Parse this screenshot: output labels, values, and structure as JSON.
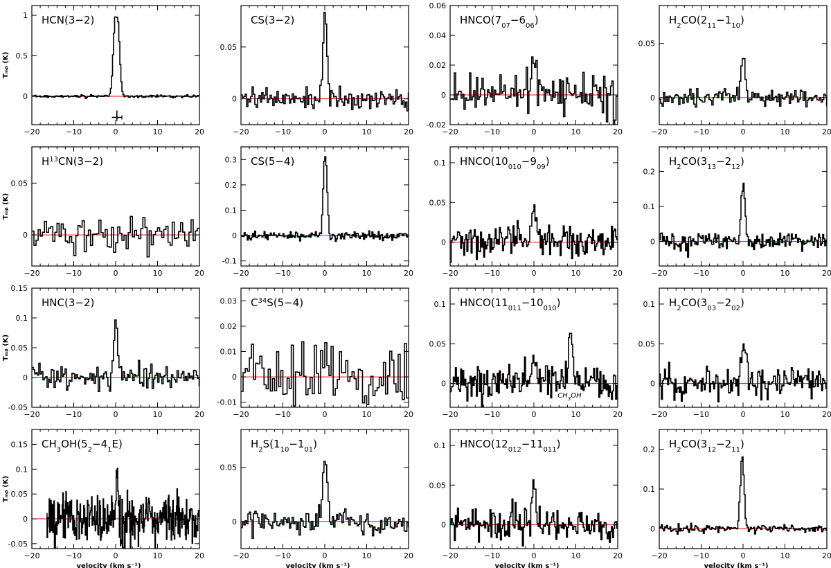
{
  "chart_data": {
    "type": "line",
    "layout": "4x4 grid of spectra",
    "grid": false,
    "xlabel": "velocity (km s⁻¹)",
    "ylabel": "Tₘᵦ (K)",
    "baseline_color": "#ff0000",
    "line_color": "#000000",
    "xlim": [
      -20,
      20
    ],
    "xticks": [
      -20,
      -10,
      0,
      10,
      20
    ],
    "panels": [
      {
        "title_parts": [
          [
            "n",
            "HCN(3−2)"
          ]
        ],
        "ylim": [
          -0.35,
          1.12
        ],
        "yticks": [
          0,
          0.5,
          1
        ],
        "ytick_labels": [
          "0",
          "0.5",
          "1"
        ],
        "xstart": -20,
        "channel": 0.25,
        "noise": 0.008,
        "peaks": [
          {
            "v": 0.2,
            "amp": 0.98,
            "w": 0.5,
            "flat": 0.5
          }
        ],
        "has_error_bar": true,
        "error_bar": {
          "v": 0.3,
          "halfwidth": 1.2,
          "y": -0.26
        }
      },
      {
        "title_parts": [
          [
            "n",
            "CS(3−2)"
          ]
        ],
        "ylim": [
          -0.025,
          0.09
        ],
        "yticks": [
          0,
          0.05
        ],
        "ytick_labels": [
          "0",
          "0.05"
        ],
        "xstart": -20,
        "channel": 0.33,
        "noise": 0.005,
        "peaks": [
          {
            "v": 0.1,
            "amp": 0.085,
            "w": 0.45
          }
        ]
      },
      {
        "title_parts": [
          [
            "n",
            "HNCO(7"
          ],
          [
            "sub",
            "07"
          ],
          [
            "n",
            "−6"
          ],
          [
            "sub",
            "06"
          ],
          [
            "n",
            ")"
          ]
        ],
        "ylim": [
          -0.02,
          0.06
        ],
        "yticks": [
          -0.02,
          0,
          0.02,
          0.04,
          0.06
        ],
        "ytick_labels": [
          "-0.02",
          "0",
          "0.02",
          "0.04",
          "0.06"
        ],
        "xstart": -20,
        "channel": 0.33,
        "noise": 0.006,
        "peaks": [
          {
            "v": 0.1,
            "amp": 0.022,
            "w": 0.5
          }
        ]
      },
      {
        "title_parts": [
          [
            "n",
            "H"
          ],
          [
            "sub",
            "2"
          ],
          [
            "n",
            "CO(2"
          ],
          [
            "sub",
            "11"
          ],
          [
            "n",
            "−1"
          ],
          [
            "sub",
            "10"
          ],
          [
            "n",
            ")"
          ]
        ],
        "ylim": [
          -0.025,
          0.085
        ],
        "yticks": [
          0,
          0.05
        ],
        "ytick_labels": [
          "0",
          "0.05"
        ],
        "xstart": -20,
        "channel": 0.33,
        "noise": 0.004,
        "peaks": [
          {
            "v": 0.0,
            "amp": 0.04,
            "w": 0.45
          }
        ]
      },
      {
        "title_parts": [
          [
            "n",
            "H"
          ],
          [
            "sup",
            "13"
          ],
          [
            "n",
            "CN(3−2)"
          ]
        ],
        "ylim": [
          -0.03,
          0.085
        ],
        "yticks": [
          0,
          0.05
        ],
        "ytick_labels": [
          "0",
          "0.05"
        ],
        "xstart": -20,
        "channel": 0.5,
        "noise": 0.009,
        "peaks": []
      },
      {
        "title_parts": [
          [
            "n",
            "CS(5−4)"
          ]
        ],
        "ylim": [
          -0.12,
          0.35
        ],
        "yticks": [
          -0.1,
          0,
          0.1,
          0.2,
          0.3
        ],
        "ytick_labels": [
          "-0.1",
          "0",
          "0.1",
          "0.2",
          "0.3"
        ],
        "xstart": -20,
        "channel": 0.25,
        "noise": 0.008,
        "peaks": [
          {
            "v": 0.1,
            "amp": 0.3,
            "w": 0.35,
            "flat": 0.3
          }
        ]
      },
      {
        "title_parts": [
          [
            "n",
            "HNCO(10"
          ],
          [
            "sub",
            "010"
          ],
          [
            "n",
            "−9"
          ],
          [
            "sub",
            "09"
          ],
          [
            "n",
            ")"
          ]
        ],
        "ylim": [
          -0.03,
          0.12
        ],
        "yticks": [
          0,
          0.05,
          0.1
        ],
        "ytick_labels": [
          "0",
          "0.05",
          "0.1"
        ],
        "xstart": -20,
        "channel": 0.25,
        "noise": 0.01,
        "peaks": [
          {
            "v": 0.0,
            "amp": 0.045,
            "w": 0.5
          },
          {
            "v": 7.2,
            "amp": 0.02,
            "w": 0.4
          }
        ]
      },
      {
        "title_parts": [
          [
            "n",
            "H"
          ],
          [
            "sub",
            "2"
          ],
          [
            "n",
            "CO(3"
          ],
          [
            "sub",
            "13"
          ],
          [
            "n",
            "−2"
          ],
          [
            "sub",
            "12"
          ],
          [
            "n",
            ")"
          ]
        ],
        "ylim": [
          -0.07,
          0.27
        ],
        "yticks": [
          0,
          0.1,
          0.2
        ],
        "ytick_labels": [
          "0",
          "0.1",
          "0.2"
        ],
        "xstart": -20,
        "channel": 0.25,
        "noise": 0.012,
        "peaks": [
          {
            "v": 0.0,
            "amp": 0.17,
            "w": 0.45
          }
        ]
      },
      {
        "title_parts": [
          [
            "n",
            "HNC(3−2)"
          ]
        ],
        "ylim": [
          -0.05,
          0.15
        ],
        "yticks": [
          -0.05,
          0,
          0.05,
          0.1,
          0.15
        ],
        "ytick_labels": [
          "-0.05",
          "0",
          "0.05",
          "0.1",
          "0.15"
        ],
        "xstart": -20,
        "channel": 0.33,
        "noise": 0.01,
        "peaks": [
          {
            "v": 0.0,
            "amp": 0.09,
            "w": 0.55
          }
        ]
      },
      {
        "title_parts": [
          [
            "n",
            "C"
          ],
          [
            "sup",
            "34"
          ],
          [
            "n",
            "S(5−4)"
          ]
        ],
        "ylim": [
          -0.012,
          0.035
        ],
        "yticks": [
          -0.01,
          0,
          0.01,
          0.02,
          0.03
        ],
        "ytick_labels": [
          "-0.01",
          "0",
          "0.01",
          "0.02",
          "0.03"
        ],
        "xstart": -20,
        "channel": 0.5,
        "noise": 0.006,
        "peaks": [
          {
            "v": 0.0,
            "amp": 0.015,
            "w": 0.6
          }
        ]
      },
      {
        "title_parts": [
          [
            "n",
            "HNCO(11"
          ],
          [
            "sub",
            "011"
          ],
          [
            "n",
            "−10"
          ],
          [
            "sub",
            "010"
          ],
          [
            "n",
            ")"
          ]
        ],
        "ylim": [
          -0.03,
          0.12
        ],
        "yticks": [
          0,
          0.05,
          0.1
        ],
        "ytick_labels": [
          "0",
          "0.05",
          "0.1"
        ],
        "xstart": -20,
        "channel": 0.25,
        "noise": 0.01,
        "peaks": [
          {
            "v": 0.0,
            "amp": 0.04,
            "w": 0.45
          },
          {
            "v": 8.7,
            "amp": 0.075,
            "w": 0.45
          }
        ],
        "annotation": {
          "text_parts": [
            [
              "n",
              "CH"
            ],
            [
              "sub",
              "3"
            ],
            [
              "n",
              "OH"
            ]
          ],
          "x": 8.5,
          "y": -0.018
        }
      },
      {
        "title_parts": [
          [
            "n",
            "H"
          ],
          [
            "sub",
            "2"
          ],
          [
            "n",
            "CO(3"
          ],
          [
            "sub",
            "03"
          ],
          [
            "n",
            "−2"
          ],
          [
            "sub",
            "02"
          ],
          [
            "n",
            ")"
          ]
        ],
        "ylim": [
          -0.03,
          0.12
        ],
        "yticks": [
          0,
          0.05,
          0.1
        ],
        "ytick_labels": [
          "0",
          "0.05",
          "0.1"
        ],
        "xstart": -20,
        "channel": 0.25,
        "noise": 0.01,
        "peaks": [
          {
            "v": 0.2,
            "amp": 0.05,
            "w": 0.55
          }
        ]
      },
      {
        "title_parts": [
          [
            "n",
            "CH"
          ],
          [
            "sub",
            "3"
          ],
          [
            "n",
            "OH(5"
          ],
          [
            "sub",
            "2"
          ],
          [
            "n",
            "−4"
          ],
          [
            "sub",
            "1"
          ],
          [
            "n",
            "E)"
          ]
        ],
        "ylim": [
          -0.06,
          0.18
        ],
        "yticks": [
          -0.05,
          0,
          0.05,
          0.1,
          0.15
        ],
        "ytick_labels": [
          "-0.05",
          "0",
          "0.05",
          "0.1",
          "0.15"
        ],
        "xstart": -16.5,
        "channel": 0.125,
        "noise": 0.025,
        "peaks": [
          {
            "v": 0.3,
            "amp": 0.09,
            "w": 0.25
          }
        ]
      },
      {
        "title_parts": [
          [
            "n",
            "H"
          ],
          [
            "sub",
            "2"
          ],
          [
            "n",
            "S(1"
          ],
          [
            "sub",
            "10"
          ],
          [
            "n",
            "−1"
          ],
          [
            "sub",
            "01"
          ],
          [
            "n",
            ")"
          ]
        ],
        "ylim": [
          -0.025,
          0.085
        ],
        "yticks": [
          0,
          0.05
        ],
        "ytick_labels": [
          "0",
          "0.05"
        ],
        "xstart": -20,
        "channel": 0.33,
        "noise": 0.005,
        "peaks": [
          {
            "v": 0.1,
            "amp": 0.058,
            "w": 0.5
          }
        ]
      },
      {
        "title_parts": [
          [
            "n",
            "HNCO(12"
          ],
          [
            "sub",
            "012"
          ],
          [
            "n",
            "−11"
          ],
          [
            "sub",
            "011"
          ],
          [
            "n",
            ")"
          ]
        ],
        "ylim": [
          -0.03,
          0.12
        ],
        "yticks": [
          0,
          0.05,
          0.1
        ],
        "ytick_labels": [
          "0",
          "0.05",
          "0.1"
        ],
        "xstart": -20,
        "channel": 0.25,
        "noise": 0.01,
        "peaks": [
          {
            "v": 0.0,
            "amp": 0.04,
            "w": 0.55
          }
        ]
      },
      {
        "title_parts": [
          [
            "n",
            "H"
          ],
          [
            "sub",
            "2"
          ],
          [
            "n",
            "CO(3"
          ],
          [
            "sub",
            "12"
          ],
          [
            "n",
            "−2"
          ],
          [
            "sub",
            "11"
          ],
          [
            "n",
            ")"
          ]
        ],
        "ylim": [
          -0.05,
          0.25
        ],
        "yticks": [
          0,
          0.1,
          0.2
        ],
        "ytick_labels": [
          "0",
          "0.1",
          "0.2"
        ],
        "xstart": -20,
        "channel": 0.25,
        "noise": 0.005,
        "peaks": [
          {
            "v": -0.2,
            "amp": 0.18,
            "w": 0.45
          }
        ]
      }
    ]
  }
}
